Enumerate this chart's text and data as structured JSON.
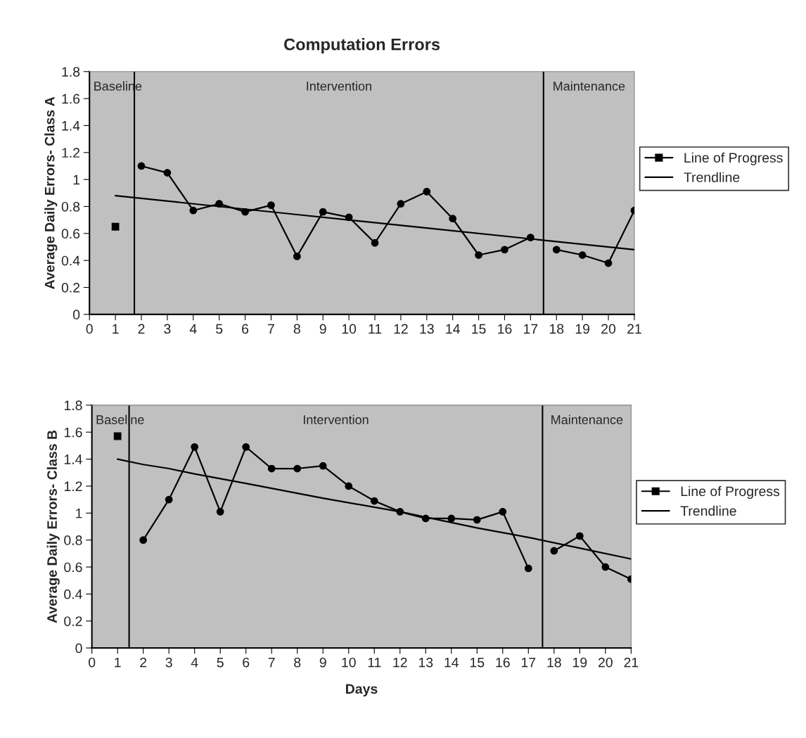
{
  "chart_data": [
    {
      "type": "line",
      "title": "Computation Errors",
      "ylabel": "Average Daily Errors- Class A",
      "xlim": [
        0,
        21
      ],
      "xticks": [
        0,
        1,
        2,
        3,
        4,
        5,
        6,
        7,
        8,
        9,
        10,
        11,
        12,
        13,
        14,
        15,
        16,
        17,
        18,
        19,
        20,
        21
      ],
      "ylim": [
        0,
        1.8
      ],
      "yticks": [
        0,
        0.2,
        0.4,
        0.6,
        0.8,
        1,
        1.2,
        1.4,
        1.6,
        1.8
      ],
      "grid": false,
      "legend": "right",
      "series": [
        {
          "name": "Line of Progress",
          "color": "#000000",
          "marker": "square",
          "x": [
            1
          ],
          "values": [
            0.65
          ]
        },
        {
          "color": "#000000",
          "marker": "circle",
          "x": [
            2,
            3,
            4,
            5,
            6,
            7,
            8,
            9,
            10,
            11,
            12,
            13,
            14,
            15,
            16,
            17
          ],
          "values": [
            1.1,
            1.05,
            0.77,
            0.82,
            0.76,
            0.81,
            0.43,
            0.76,
            0.72,
            0.53,
            0.82,
            0.91,
            0.71,
            0.44,
            0.48,
            0.57
          ]
        },
        {
          "color": "#000000",
          "marker": "circle",
          "x": [
            18,
            19,
            20,
            21
          ],
          "values": [
            0.48,
            0.44,
            0.38,
            0.77
          ]
        },
        {
          "name": "Trendline",
          "color": "#000000",
          "marker": "none",
          "x": [
            1,
            8,
            13,
            21
          ],
          "values": [
            0.88,
            0.74,
            0.64,
            0.48
          ]
        }
      ],
      "bands": [
        {
          "axis": "x",
          "from": 0,
          "to": 1.73,
          "label": "Baseline",
          "color": "#c0c0c0"
        },
        {
          "axis": "x",
          "from": 1.73,
          "to": 17.5,
          "label": "Intervention",
          "color": "#c0c0c0"
        },
        {
          "axis": "x",
          "from": 17.5,
          "to": 21,
          "label": "Maintenance",
          "color": "#c0c0c0"
        }
      ],
      "ref_lines": [
        {
          "axis": "x",
          "value": 1.73,
          "color": "#000000"
        },
        {
          "axis": "x",
          "value": 17.5,
          "color": "#000000"
        }
      ]
    },
    {
      "type": "line",
      "xlabel": "Days",
      "ylabel": "Average Daily Errors- Class B",
      "xlim": [
        0,
        21
      ],
      "xticks": [
        0,
        1,
        2,
        3,
        4,
        5,
        6,
        7,
        8,
        9,
        10,
        11,
        12,
        13,
        14,
        15,
        16,
        17,
        18,
        19,
        20,
        21
      ],
      "ylim": [
        0,
        1.8
      ],
      "yticks": [
        0,
        0.2,
        0.4,
        0.6,
        0.8,
        1,
        1.2,
        1.4,
        1.6,
        1.8
      ],
      "grid": false,
      "legend": "right",
      "series": [
        {
          "name": "Line of Progress",
          "color": "#000000",
          "marker": "square",
          "x": [
            1
          ],
          "values": [
            1.57
          ]
        },
        {
          "color": "#000000",
          "marker": "circle",
          "x": [
            2,
            3,
            4,
            5,
            6,
            7,
            8,
            9,
            10,
            11,
            12,
            13,
            14,
            15,
            16,
            17
          ],
          "values": [
            0.8,
            1.1,
            1.49,
            1.01,
            1.49,
            1.33,
            1.33,
            1.35,
            1.2,
            1.09,
            1.01,
            0.96,
            0.96,
            0.95,
            1.01,
            0.59
          ]
        },
        {
          "color": "#000000",
          "marker": "circle",
          "x": [
            18,
            19,
            20,
            21
          ],
          "values": [
            0.72,
            0.83,
            0.6,
            0.51
          ]
        },
        {
          "name": "Trendline",
          "color": "#000000",
          "marker": "none",
          "x": [
            1,
            2,
            3,
            4,
            6,
            9,
            12,
            15,
            17,
            19,
            21
          ],
          "values": [
            1.4,
            1.36,
            1.33,
            1.29,
            1.22,
            1.11,
            1.01,
            0.89,
            0.82,
            0.74,
            0.66
          ]
        }
      ],
      "bands": [
        {
          "axis": "x",
          "from": 0,
          "to": 1.45,
          "label": "Baseline",
          "color": "#c0c0c0"
        },
        {
          "axis": "x",
          "from": 1.45,
          "to": 17.55,
          "label": "Intervention",
          "color": "#c0c0c0"
        },
        {
          "axis": "x",
          "from": 17.55,
          "to": 21,
          "label": "Maintenance",
          "color": "#c0c0c0"
        }
      ],
      "ref_lines": [
        {
          "axis": "x",
          "value": 1.45,
          "color": "#000000"
        },
        {
          "axis": "x",
          "value": 17.55,
          "color": "#000000"
        }
      ]
    }
  ]
}
